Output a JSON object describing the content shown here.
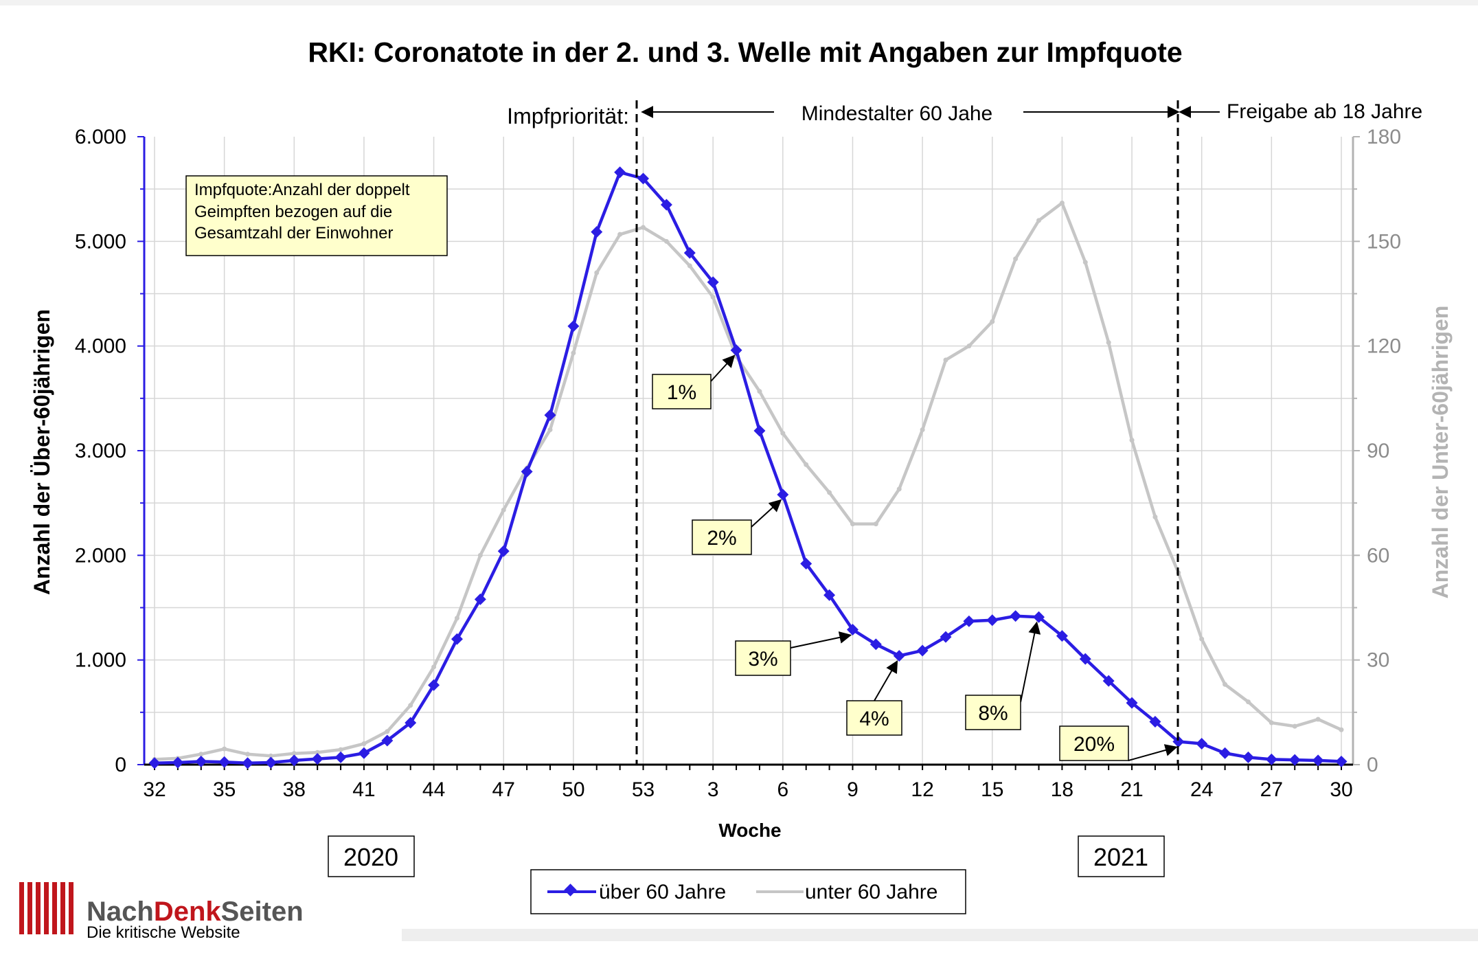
{
  "chart_data": {
    "type": "line",
    "title": "RKI: Coronatote in der 2. und 3. Welle mit Angaben zur Impfquote",
    "xlabel": "Woche",
    "ylabel_left": "Anzahl der Über-60jährigen",
    "ylabel_right": "Anzahl der Unter-60jährigen",
    "ylim_left": [
      0,
      6000
    ],
    "ylim_right": [
      0,
      180
    ],
    "yticks_left": [
      "0",
      "1.000",
      "2.000",
      "3.000",
      "4.000",
      "5.000",
      "6.000"
    ],
    "yticks_right": [
      "0",
      "30",
      "60",
      "90",
      "120",
      "150",
      "180"
    ],
    "x_tick_labels": [
      "32",
      "35",
      "38",
      "41",
      "44",
      "47",
      "50",
      "53",
      "3",
      "6",
      "9",
      "12",
      "15",
      "18",
      "21",
      "24",
      "27",
      "30"
    ],
    "x": [
      "32",
      "33",
      "34",
      "35",
      "36",
      "37",
      "38",
      "39",
      "40",
      "41",
      "42",
      "43",
      "44",
      "45",
      "46",
      "47",
      "48",
      "49",
      "50",
      "51",
      "52",
      "53",
      "1",
      "2",
      "3",
      "4",
      "5",
      "6",
      "7",
      "8",
      "9",
      "10",
      "11",
      "12",
      "13",
      "14",
      "15",
      "16",
      "17",
      "18",
      "19",
      "20",
      "21",
      "22",
      "23",
      "24",
      "25",
      "26",
      "27",
      "28",
      "29",
      "30"
    ],
    "grid": true,
    "legend_position": "bottom-center",
    "series": [
      {
        "name": "über 60 Jahre",
        "axis": "left",
        "color": "#2b1de3",
        "values": [
          15,
          20,
          30,
          25,
          15,
          20,
          40,
          55,
          70,
          110,
          230,
          400,
          760,
          1200,
          1580,
          2040,
          2800,
          3340,
          4190,
          5090,
          5660,
          5600,
          5350,
          4890,
          4610,
          3960,
          3190,
          2580,
          1920,
          1620,
          1290,
          1150,
          1040,
          1090,
          1220,
          1370,
          1380,
          1420,
          1410,
          1230,
          1010,
          800,
          590,
          410,
          220,
          200,
          110,
          70,
          50,
          45,
          40,
          30
        ]
      },
      {
        "name": "unter 60 Jahre",
        "axis": "right",
        "color": "#c6c6c6",
        "values": [
          1.5,
          1.8,
          3,
          4.5,
          3,
          2.5,
          3.2,
          3.5,
          4.3,
          6,
          9.5,
          17,
          28,
          42,
          60,
          73,
          85,
          96,
          118,
          141,
          152,
          154,
          150,
          143,
          134,
          117,
          107,
          95,
          86,
          78,
          69,
          69,
          79,
          96,
          116,
          120,
          127,
          145,
          156,
          161,
          144,
          121,
          93,
          71,
          55,
          36,
          23,
          18,
          12,
          11,
          13,
          10
        ]
      }
    ],
    "annotations": [
      {
        "label": "1%",
        "target_week": "4"
      },
      {
        "label": "2%",
        "target_week": "6"
      },
      {
        "label": "3%",
        "target_week": "9"
      },
      {
        "label": "4%",
        "target_week": "11"
      },
      {
        "label": "8%",
        "target_week": "17"
      },
      {
        "label": "20%",
        "target_week": "23"
      }
    ],
    "note_box": [
      "Impfquote:Anzahl der doppelt",
      "Geimpften bezogen auf die",
      "Gesamtzahl der Einwohner"
    ],
    "phase_labels": {
      "lead": "Impfpriorität:",
      "phase1": "Mindestalter 60 Jahe",
      "phase2": "Freigabe ab 18 Jahre"
    },
    "year_labels": [
      "2020",
      "2021"
    ]
  },
  "branding": {
    "name_part1": "Nach",
    "name_part2": "Denk",
    "name_part3": "Seiten",
    "tagline": "Die kritische Website",
    "brand_color": "#c0161c",
    "text_color": "#555555"
  }
}
